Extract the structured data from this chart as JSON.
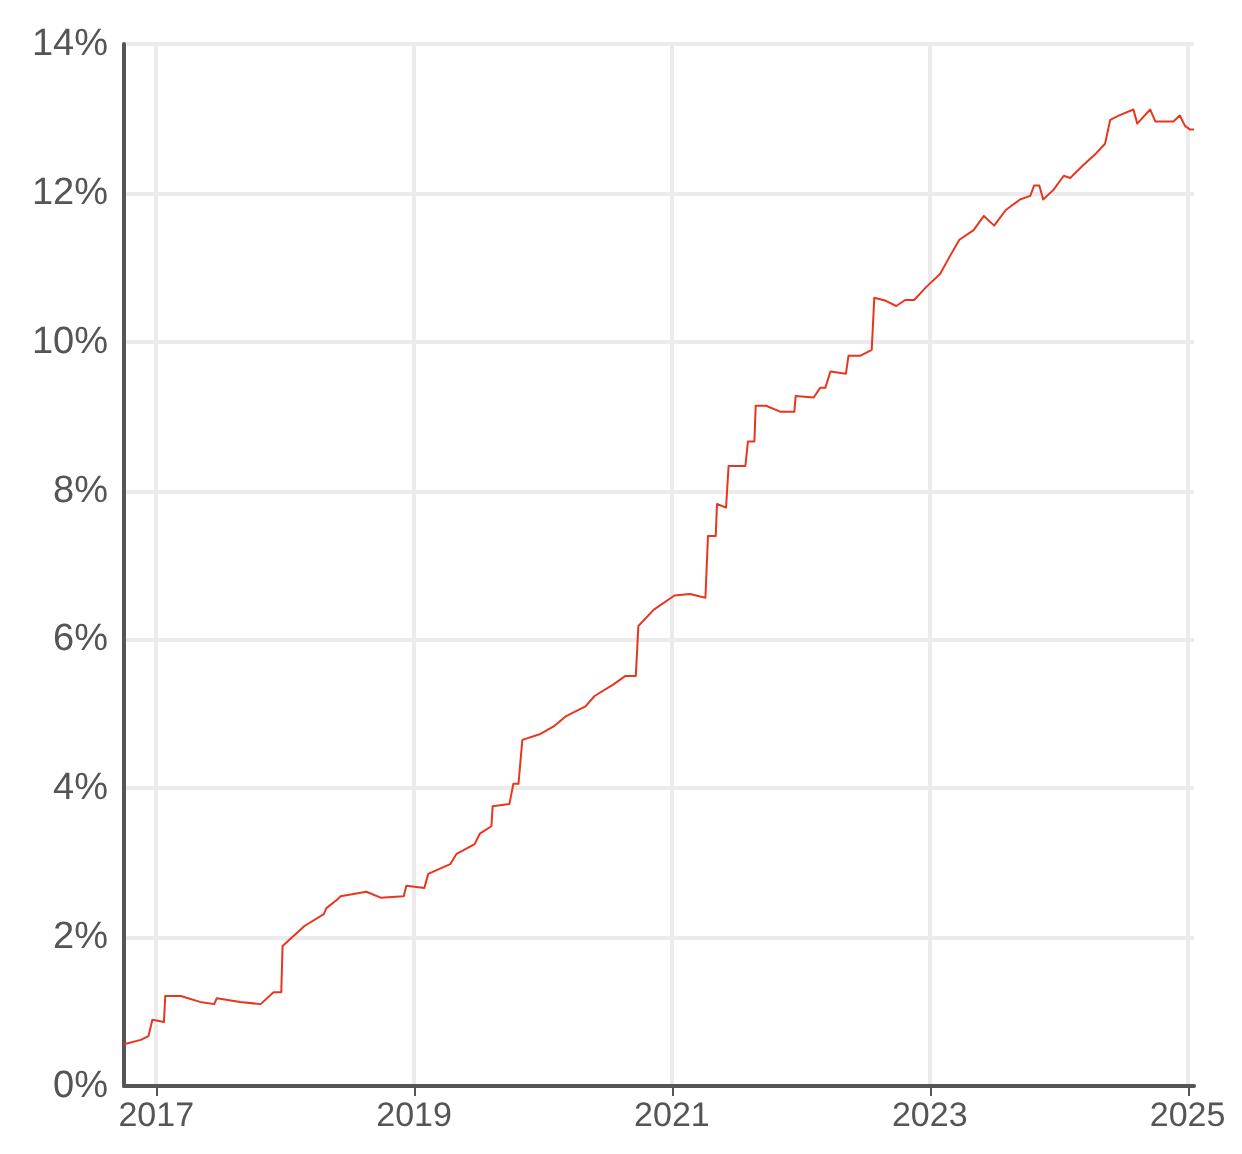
{
  "chart_data": {
    "type": "line",
    "x": [
      2016.75,
      2016.88,
      2016.94,
      2016.97,
      2017.06,
      2017.07,
      2017.19,
      2017.34,
      2017.45,
      2017.47,
      2017.65,
      2017.81,
      2017.91,
      2017.97,
      2017.98,
      2018.15,
      2018.3,
      2018.32,
      2018.4,
      2018.43,
      2018.63,
      2018.74,
      2018.92,
      2018.94,
      2019.08,
      2019.11,
      2019.28,
      2019.33,
      2019.47,
      2019.51,
      2019.6,
      2019.61,
      2019.74,
      2019.77,
      2019.81,
      2019.84,
      2019.98,
      2020.09,
      2020.18,
      2020.33,
      2020.4,
      2020.55,
      2020.64,
      2020.72,
      2020.74,
      2020.86,
      2021.02,
      2021.14,
      2021.26,
      2021.28,
      2021.34,
      2021.35,
      2021.42,
      2021.44,
      2021.57,
      2021.59,
      2021.64,
      2021.65,
      2021.73,
      2021.84,
      2021.95,
      2021.96,
      2022.1,
      2022.15,
      2022.19,
      2022.23,
      2022.35,
      2022.37,
      2022.46,
      2022.55,
      2022.57,
      2022.66,
      2022.74,
      2022.81,
      2022.88,
      2022.97,
      2023.08,
      2023.16,
      2023.23,
      2023.34,
      2023.42,
      2023.5,
      2023.59,
      2023.7,
      2023.78,
      2023.81,
      2023.85,
      2023.88,
      2023.96,
      2024.04,
      2024.09,
      2024.19,
      2024.29,
      2024.36,
      2024.4,
      2024.47,
      2024.58,
      2024.61,
      2024.71,
      2024.75,
      2024.89,
      2024.94,
      2024.98,
      2025.02,
      2025.05
    ],
    "series": [
      {
        "color": "#e8361e",
        "values": [
          0.56,
          0.62,
          0.67,
          0.89,
          0.86,
          1.21,
          1.21,
          1.13,
          1.1,
          1.18,
          1.13,
          1.1,
          1.26,
          1.26,
          1.88,
          2.15,
          2.31,
          2.39,
          2.5,
          2.55,
          2.61,
          2.53,
          2.55,
          2.69,
          2.66,
          2.85,
          2.98,
          3.12,
          3.25,
          3.39,
          3.49,
          3.76,
          3.79,
          4.06,
          4.06,
          4.65,
          4.73,
          4.84,
          4.97,
          5.1,
          5.24,
          5.4,
          5.51,
          5.51,
          6.18,
          6.4,
          6.59,
          6.61,
          6.56,
          7.39,
          7.39,
          7.82,
          7.77,
          8.33,
          8.33,
          8.66,
          8.66,
          9.14,
          9.14,
          9.06,
          9.06,
          9.27,
          9.25,
          9.38,
          9.38,
          9.6,
          9.57,
          9.81,
          9.81,
          9.89,
          10.59,
          10.55,
          10.48,
          10.56,
          10.56,
          10.73,
          10.91,
          11.16,
          11.37,
          11.5,
          11.69,
          11.56,
          11.77,
          11.91,
          11.96,
          12.1,
          12.1,
          11.91,
          12.04,
          12.23,
          12.2,
          12.37,
          12.53,
          12.66,
          12.98,
          13.04,
          13.12,
          12.93,
          13.12,
          12.96,
          12.96,
          13.04,
          12.9,
          12.85,
          12.85
        ]
      }
    ],
    "xlim": [
      2016.75,
      2025.05
    ],
    "xticks": [
      2017,
      2019,
      2021,
      2023,
      2025
    ],
    "ylim": [
      0,
      14
    ],
    "yticks": [
      {
        "value": 0,
        "label": "0%"
      },
      {
        "value": 2,
        "label": "2%"
      },
      {
        "value": 4,
        "label": "4%"
      },
      {
        "value": 6,
        "label": "6%"
      },
      {
        "value": 8,
        "label": "8%"
      },
      {
        "value": 10,
        "label": "10%"
      },
      {
        "value": 12,
        "label": "12%"
      },
      {
        "value": 14,
        "label": "14%"
      }
    ],
    "grid": true,
    "marker": "none",
    "line_style": "solid"
  }
}
